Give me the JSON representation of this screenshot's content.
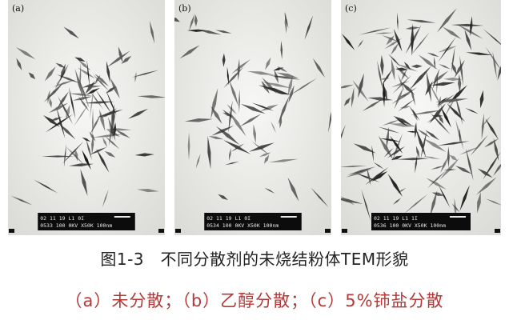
{
  "figure": {
    "panels": [
      {
        "label": "(a)",
        "scale_bar": "100nm",
        "micron_line1": "02 11 19 L1 0I",
        "micron_line2": "0533 100 0KV  X50K  100nm"
      },
      {
        "label": "(b)",
        "scale_bar": "100nm",
        "micron_line1": "02 11 19 L1 0I",
        "micron_line2": "0534 100 0KV  X50K  100nm"
      },
      {
        "label": "(c)",
        "scale_bar": "100nm",
        "micron_line1": "02 11 19 L1 1I",
        "micron_line2": "0536 100 0KV  X50K  100nm"
      }
    ]
  },
  "caption": {
    "title": "图1-3　不同分散剂的未烧结粉体TEM形貌",
    "subtitle": "（a）未分散；（b）乙醇分散；（c）5%铈盐分散"
  }
}
